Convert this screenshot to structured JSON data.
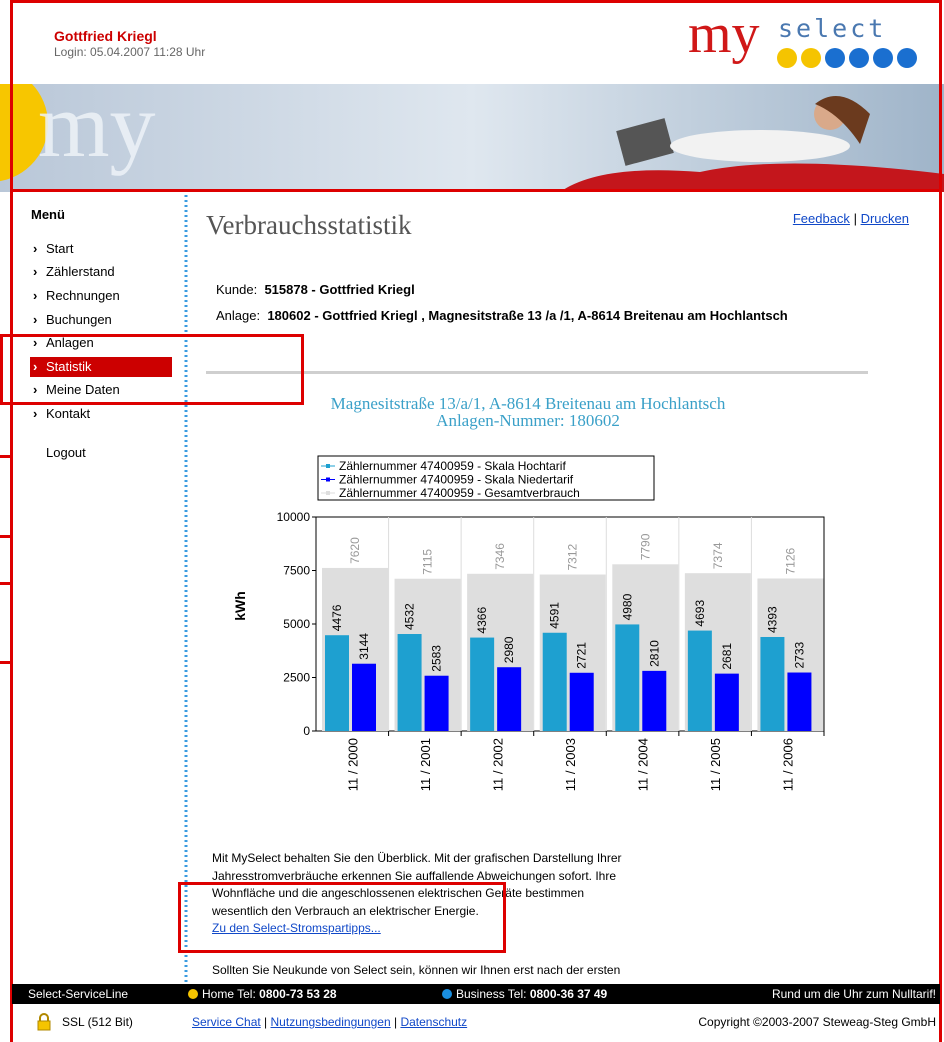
{
  "header": {
    "name": "Gottfried Kriegl",
    "login": "Login: 05.04.2007 11:28 Uhr",
    "logo_my": "my",
    "logo_select": "select",
    "banner_text": "my"
  },
  "menu": {
    "title": "Menü",
    "items": [
      "Start",
      "Zählerstand",
      "Rechnungen",
      "Buchungen",
      "Anlagen",
      "Statistik",
      "Meine Daten",
      "Kontakt"
    ],
    "logout": "Logout"
  },
  "content": {
    "title": "Verbrauchsstatistik",
    "links": [
      "Feedback",
      "Drucken"
    ],
    "link_separator": "|",
    "customer": {
      "label": "Kunde:",
      "value": "515878 - Gottfried Kriegl"
    },
    "plant": {
      "label": "Anlage:",
      "value": "180602 - Gottfried Kriegl , Magnesitstraße 13 /a /1, A-8614 Breitenau am Hochlantsch"
    },
    "paragraph": [
      "Mit MySelect behalten Sie den Überblick. Mit der grafischen Darstellung Ihrer",
      "Jahresstromverbräuche erkennen Sie auffallende Abweichungen sofort. Ihre",
      "Wohnfläche und die angeschlossenen elektrischen Geräte bestimmen",
      "wesentlich den Verbrauch an elektrischer Energie."
    ],
    "tips_link": "Zu den Select-Stromspartipps...",
    "paragraph2": "Sollten Sie Neukunde von Select sein, können wir Ihnen erst nach der ersten"
  },
  "chart_data": {
    "type": "bar",
    "title": "Magnesitstraße 13/a/1, A-8614 Breitenau am Hochlantsch",
    "subtitle": "Anlagen-Nummer: 180602",
    "y_label": "kWh",
    "categories": [
      "11 / 2000",
      "11 / 2001",
      "11 / 2002",
      "11 / 2003",
      "11 / 2004",
      "11 / 2005",
      "11 / 2006"
    ],
    "series": [
      {
        "name": "Zählernummer 47400959 - Skala Hochtarif",
        "color": "#1ea0d0",
        "values": [
          4476,
          4532,
          4366,
          4591,
          4980,
          4693,
          4393
        ]
      },
      {
        "name": "Zählernummer 47400959 - Skala Niedertarif",
        "color": "#0000ff",
        "values": [
          3144,
          2583,
          2980,
          2721,
          2810,
          2681,
          2733
        ]
      },
      {
        "name": "Zählernummer 47400959 - Gesamtverbrauch",
        "color": "#dedede",
        "values": [
          7620,
          7115,
          7346,
          7312,
          7790,
          7374,
          7126
        ]
      }
    ],
    "ylim": [
      0,
      10000
    ],
    "yticks": [
      0,
      2500,
      5000,
      7500,
      10000
    ]
  },
  "footer": {
    "service": "Select-ServiceLine",
    "home_label": "Home Tel:",
    "home_number": "0800-73 53 28",
    "business_label": "Business Tel:",
    "business_number": "0800-36 37 49",
    "slogan": "Rund um die Uhr zum Nulltarif!",
    "ssl": "SSL (512 Bit)",
    "links": [
      "Service Chat",
      "Nutzungsbedingungen",
      "Datenschutz"
    ],
    "separator": "|",
    "copyright": "Copyright ©2003-2007 Steweag-Steg GmbH"
  }
}
